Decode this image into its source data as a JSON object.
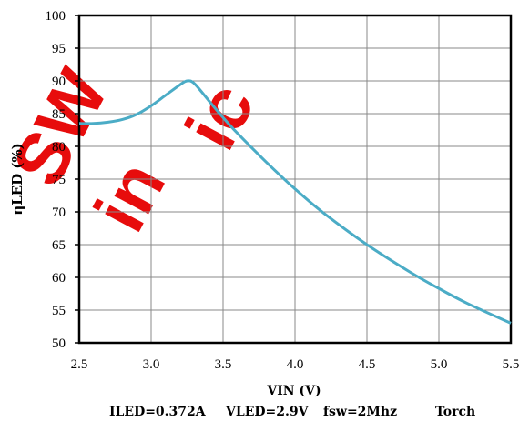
{
  "chart_data": {
    "type": "line",
    "xlabel": "VIN (V)",
    "ylabel": "ηLED (%)",
    "xlim": [
      2.5,
      5.5
    ],
    "ylim": [
      50,
      100
    ],
    "x_ticks": [
      "2.5",
      "3.0",
      "3.5",
      "4.0",
      "4.5",
      "5.0",
      "5.5"
    ],
    "y_ticks": [
      "50",
      "55",
      "60",
      "65",
      "70",
      "75",
      "80",
      "85",
      "90",
      "95",
      "100"
    ],
    "grid": true,
    "legend": "none",
    "line_color": "#4bacc6",
    "series": [
      {
        "x": [
          2.5,
          2.6,
          2.7,
          2.8,
          2.9,
          3.0,
          3.1,
          3.2,
          3.25,
          3.3,
          3.4,
          3.5,
          3.6,
          3.8,
          4.0,
          4.2,
          4.5,
          4.8,
          5.0,
          5.2,
          5.5
        ],
        "y": [
          83.5,
          83.5,
          83.7,
          84.1,
          84.9,
          86.2,
          87.8,
          89.4,
          90.0,
          89.6,
          87.0,
          84.4,
          82.0,
          77.6,
          73.5,
          69.8,
          65.0,
          60.8,
          58.3,
          56.0,
          53.0
        ]
      }
    ],
    "conditions": {
      "iled": "ILED=0.372A",
      "vled": "VLED=2.9V",
      "fsw": "fsw=2Mhz",
      "mode": "Torch"
    }
  }
}
